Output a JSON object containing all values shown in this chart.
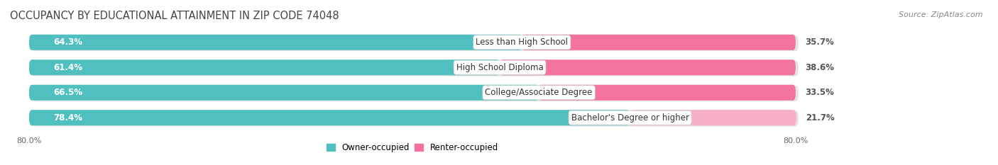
{
  "title": "OCCUPANCY BY EDUCATIONAL ATTAINMENT IN ZIP CODE 74048",
  "source": "Source: ZipAtlas.com",
  "categories": [
    "Less than High School",
    "High School Diploma",
    "College/Associate Degree",
    "Bachelor's Degree or higher"
  ],
  "owner_values": [
    64.3,
    61.4,
    66.5,
    78.4
  ],
  "renter_values": [
    35.7,
    38.6,
    33.5,
    21.7
  ],
  "owner_color": "#50bfbf",
  "renter_color_top3": "#f472a0",
  "renter_color_bottom": "#f9afc8",
  "owner_label": "Owner-occupied",
  "renter_label": "Renter-occupied",
  "bar_height": 0.62,
  "title_fontsize": 10.5,
  "label_fontsize": 8.5,
  "category_fontsize": 8.5,
  "source_fontsize": 8
}
